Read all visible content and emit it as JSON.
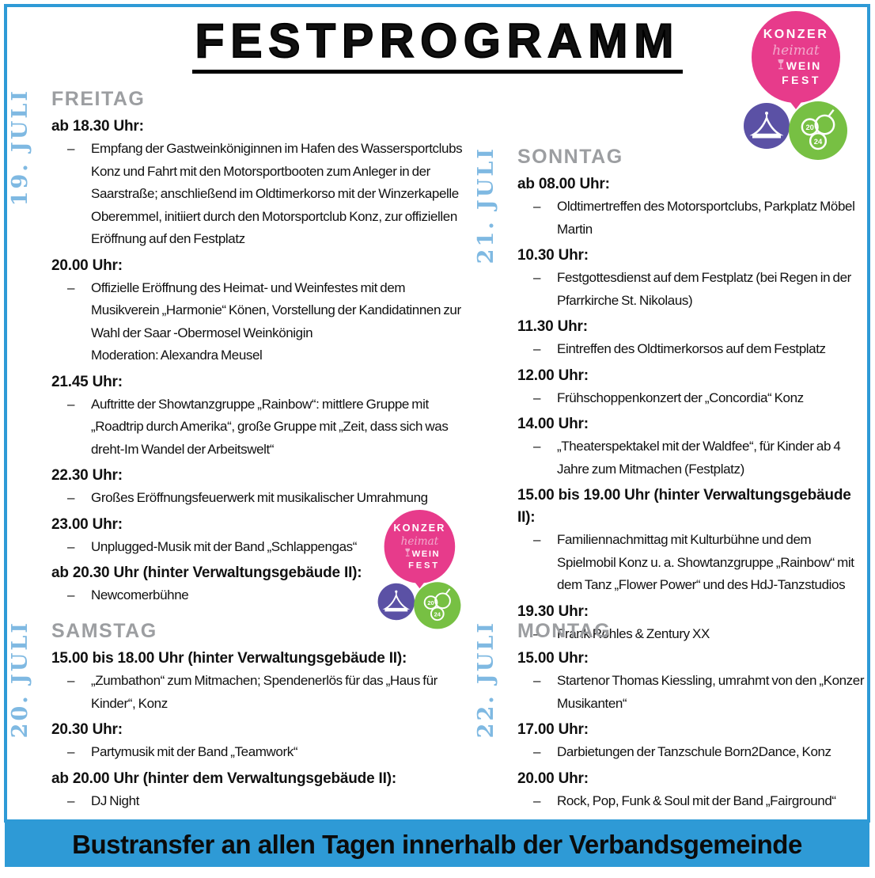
{
  "page": {
    "title": "FESTPROGRAMM",
    "banner": "Bustransfer an allen Tagen innerhalb der Verbandsgemeinde"
  },
  "colors": {
    "accent_blue": "#2E9AD6",
    "date_blue": "#7FB9E2",
    "header_gray": "#9C9EA1",
    "logo_pink": "#E73B8B",
    "logo_light_pink": "#F2A9CC",
    "logo_purple": "#5B51A5",
    "logo_green": "#77C043"
  },
  "logo": {
    "line1": "KONZER",
    "line2": "heimat",
    "line3": "WEIN",
    "line4": "FEST",
    "year_top": "20",
    "year_bottom": "24"
  },
  "days": [
    {
      "id": "freitag",
      "date": "19. JULI",
      "name": "FREITAG",
      "slots": [
        {
          "time": "ab 18.30 Uhr:",
          "items": [
            "Empfang der Gastweinköniginnen im Hafen des Wassersportclubs Konz und Fahrt mit den Motorsportbooten zum Anleger in der Saarstraße; anschließend im Oldtimerkorso mit der Winzerkapelle Oberemmel, initiiert durch den Motorsportclub Konz, zur offiziellen Eröffnung auf den Festplatz"
          ]
        },
        {
          "time": "20.00 Uhr:",
          "items": [
            "Offizielle Eröffnung des Heimat- und Weinfestes mit dem Musikverein „Harmonie“ Könen, Vorstellung der Kandidatinnen zur Wahl der Saar -Obermosel Weinkönigin"
          ],
          "note": "Moderation: Alexandra Meusel"
        },
        {
          "time": "21.45 Uhr:",
          "items": [
            "Auftritte der Showtanzgruppe „Rainbow“: mittlere Gruppe mit „Roadtrip durch Amerika“, große Gruppe mit „Zeit, dass sich was dreht-Im Wandel der Arbeitswelt“"
          ]
        },
        {
          "time": "22.30 Uhr:",
          "items": [
            "Großes Eröffnungsfeuerwerk mit musikalischer Umrahmung"
          ]
        },
        {
          "time": "23.00 Uhr:",
          "items": [
            "Unplugged-Musik mit der Band „Schlappengas“"
          ]
        },
        {
          "time": "ab 20.30 Uhr (hinter Verwaltungsgebäude II):",
          "items": [
            "Newcomerbühne"
          ]
        }
      ]
    },
    {
      "id": "samstag",
      "date": "20. JULI",
      "name": "SAMSTAG",
      "slots": [
        {
          "time": "15.00 bis 18.00 Uhr (hinter Verwaltungsgebäude II):",
          "items": [
            "„Zumbathon“ zum Mitmachen; Spendenerlös für das „Haus für Kinder“, Konz"
          ]
        },
        {
          "time": "20.30 Uhr:",
          "items": [
            "Partymusik mit der Band „Teamwork“"
          ]
        },
        {
          "time": "ab 20.00 Uhr (hinter dem Verwaltungsgebäude II):",
          "items": [
            "DJ Night"
          ]
        }
      ]
    },
    {
      "id": "sonntag",
      "date": "21. JULI",
      "name": "SONNTAG",
      "slots": [
        {
          "time": "ab 08.00 Uhr:",
          "items": [
            "Oldtimertreffen des Motorsportclubs, Parkplatz Möbel Martin"
          ]
        },
        {
          "time": "10.30 Uhr:",
          "items": [
            "Festgottesdienst auf dem Festplatz (bei Regen in der Pfarrkirche St. Nikolaus)"
          ]
        },
        {
          "time": "11.30 Uhr:",
          "items": [
            "Eintreffen des Oldtimerkorsos auf dem Festplatz"
          ]
        },
        {
          "time": "12.00 Uhr:",
          "items": [
            "Frühschoppenkonzert der „Concordia“ Konz"
          ]
        },
        {
          "time": "14.00 Uhr:",
          "items": [
            "„Theaterspektakel mit der Waldfee“, für Kinder ab 4 Jahre zum Mitmachen (Festplatz)"
          ]
        },
        {
          "time": "15.00 bis 19.00 Uhr (hinter Verwaltungsgebäude II):",
          "items": [
            "Familiennachmittag mit Kulturbühne und dem Spielmobil Konz u. a. Showtanzgruppe „Rainbow“ mit dem Tanz „Flower Power“ und des HdJ-Tanzstudios"
          ]
        },
        {
          "time": "19.30 Uhr:",
          "items": [
            "Frank Rohles & Zentury XX"
          ]
        }
      ]
    },
    {
      "id": "montag",
      "date": "22. JULI",
      "name": "MONTAG",
      "slots": [
        {
          "time": "15.00 Uhr:",
          "items": [
            "Startenor Thomas Kiessling, umrahmt von den „Konzer Musikanten“"
          ]
        },
        {
          "time": "17.00 Uhr:",
          "items": [
            "Darbietungen der Tanzschule Born2Dance, Konz"
          ]
        },
        {
          "time": "20.00 Uhr:",
          "items": [
            "Rock, Pop, Funk & Soul mit der Band „Fairground“"
          ]
        }
      ]
    }
  ]
}
